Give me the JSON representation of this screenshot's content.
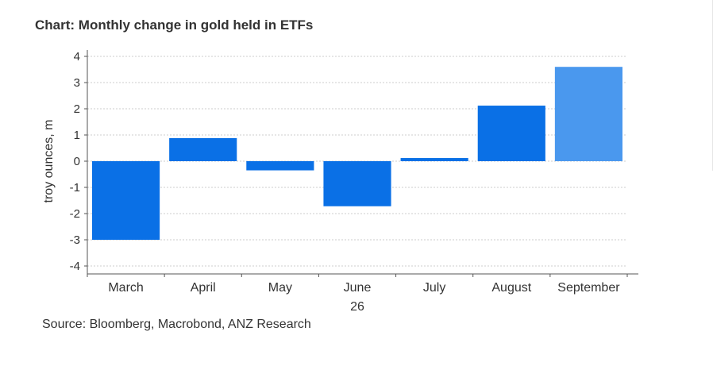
{
  "page": {
    "title": "Chart: Monthly change in gold held in ETFs",
    "source": "Source:  Bloomberg, Macrobond, ANZ Research"
  },
  "chart_data": {
    "type": "bar",
    "title": "Chart: Monthly change in gold held in ETFs",
    "ylabel": "troy ounces, m",
    "xlabel": "",
    "categories": [
      "March",
      "April",
      "May",
      "June",
      "July",
      "August",
      "September"
    ],
    "x_sublabel": {
      "category": "June",
      "text": "26"
    },
    "values": [
      -3.0,
      0.88,
      -0.35,
      -1.72,
      0.12,
      2.12,
      3.6
    ],
    "yticks": [
      4,
      3,
      2,
      1,
      0,
      -1,
      -2,
      -3,
      -4
    ],
    "ylim": [
      -4,
      4
    ],
    "grid": true,
    "colors": {
      "bar": "#0a70e6",
      "bar_highlight": "#4a98ee",
      "axis": "#555555",
      "grid": "#cccccc"
    },
    "highlight_category": "September"
  }
}
